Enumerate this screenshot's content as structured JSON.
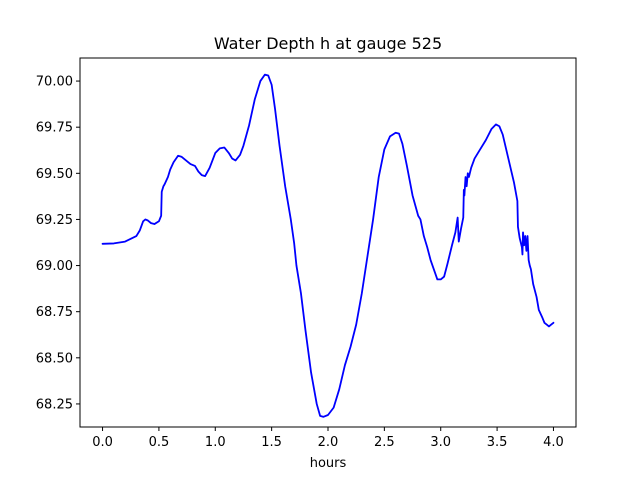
{
  "chart_data": {
    "type": "line",
    "title": "Water Depth h at gauge 525",
    "xlabel": "hours",
    "ylabel": "",
    "xlim": [
      -0.2,
      4.2
    ],
    "ylim": [
      68.125,
      70.125
    ],
    "grid": false,
    "x_ticks": [
      "0.0",
      "0.5",
      "1.0",
      "1.5",
      "2.0",
      "2.5",
      "3.0",
      "3.5",
      "4.0"
    ],
    "y_ticks": [
      "68.25",
      "68.50",
      "68.75",
      "69.00",
      "69.25",
      "69.50",
      "69.75",
      "70.00"
    ],
    "series": [
      {
        "color": "#0000ff",
        "points": [
          [
            0.0,
            69.118
          ],
          [
            0.1,
            69.12
          ],
          [
            0.2,
            69.13
          ],
          [
            0.3,
            69.16
          ],
          [
            0.33,
            69.19
          ],
          [
            0.36,
            69.24
          ],
          [
            0.38,
            69.25
          ],
          [
            0.4,
            69.245
          ],
          [
            0.43,
            69.23
          ],
          [
            0.46,
            69.225
          ],
          [
            0.5,
            69.24
          ],
          [
            0.52,
            69.27
          ],
          [
            0.525,
            69.4
          ],
          [
            0.54,
            69.43
          ],
          [
            0.55,
            69.44
          ],
          [
            0.58,
            69.48
          ],
          [
            0.6,
            69.52
          ],
          [
            0.63,
            69.56
          ],
          [
            0.67,
            69.595
          ],
          [
            0.7,
            69.59
          ],
          [
            0.75,
            69.565
          ],
          [
            0.78,
            69.55
          ],
          [
            0.82,
            69.54
          ],
          [
            0.85,
            69.51
          ],
          [
            0.88,
            69.49
          ],
          [
            0.91,
            69.485
          ],
          [
            0.95,
            69.53
          ],
          [
            1.0,
            69.61
          ],
          [
            1.04,
            69.635
          ],
          [
            1.08,
            69.64
          ],
          [
            1.12,
            69.61
          ],
          [
            1.15,
            69.58
          ],
          [
            1.18,
            69.57
          ],
          [
            1.22,
            69.6
          ],
          [
            1.25,
            69.65
          ],
          [
            1.3,
            69.76
          ],
          [
            1.35,
            69.9
          ],
          [
            1.4,
            70.0
          ],
          [
            1.44,
            70.035
          ],
          [
            1.47,
            70.03
          ],
          [
            1.5,
            69.98
          ],
          [
            1.53,
            69.85
          ],
          [
            1.57,
            69.65
          ],
          [
            1.62,
            69.43
          ],
          [
            1.67,
            69.25
          ],
          [
            1.7,
            69.12
          ],
          [
            1.72,
            69.0
          ],
          [
            1.76,
            68.85
          ],
          [
            1.8,
            68.65
          ],
          [
            1.85,
            68.42
          ],
          [
            1.9,
            68.25
          ],
          [
            1.93,
            68.185
          ],
          [
            1.96,
            68.18
          ],
          [
            2.0,
            68.19
          ],
          [
            2.05,
            68.23
          ],
          [
            2.1,
            68.33
          ],
          [
            2.15,
            68.46
          ],
          [
            2.2,
            68.56
          ],
          [
            2.25,
            68.68
          ],
          [
            2.3,
            68.85
          ],
          [
            2.35,
            69.05
          ],
          [
            2.4,
            69.25
          ],
          [
            2.45,
            69.48
          ],
          [
            2.5,
            69.63
          ],
          [
            2.55,
            69.7
          ],
          [
            2.6,
            69.72
          ],
          [
            2.63,
            69.715
          ],
          [
            2.66,
            69.66
          ],
          [
            2.7,
            69.54
          ],
          [
            2.75,
            69.38
          ],
          [
            2.8,
            69.27
          ],
          [
            2.82,
            69.25
          ],
          [
            2.85,
            69.16
          ],
          [
            2.88,
            69.1
          ],
          [
            2.91,
            69.03
          ],
          [
            2.95,
            68.96
          ],
          [
            2.97,
            68.925
          ],
          [
            3.0,
            68.925
          ],
          [
            3.03,
            68.94
          ],
          [
            3.06,
            69.01
          ],
          [
            3.1,
            69.11
          ],
          [
            3.13,
            69.18
          ],
          [
            3.15,
            69.26
          ],
          [
            3.16,
            69.13
          ],
          [
            3.18,
            69.2
          ],
          [
            3.2,
            69.26
          ],
          [
            3.205,
            69.41
          ],
          [
            3.21,
            69.38
          ],
          [
            3.22,
            69.48
          ],
          [
            3.23,
            69.43
          ],
          [
            3.24,
            69.5
          ],
          [
            3.25,
            69.48
          ],
          [
            3.27,
            69.53
          ],
          [
            3.3,
            69.58
          ],
          [
            3.35,
            69.63
          ],
          [
            3.4,
            69.68
          ],
          [
            3.45,
            69.74
          ],
          [
            3.49,
            69.765
          ],
          [
            3.52,
            69.755
          ],
          [
            3.55,
            69.71
          ],
          [
            3.6,
            69.58
          ],
          [
            3.65,
            69.45
          ],
          [
            3.68,
            69.35
          ],
          [
            3.685,
            69.21
          ],
          [
            3.7,
            69.15
          ],
          [
            3.72,
            69.1
          ],
          [
            3.725,
            69.06
          ],
          [
            3.73,
            69.18
          ],
          [
            3.74,
            69.11
          ],
          [
            3.75,
            69.16
          ],
          [
            3.76,
            69.08
          ],
          [
            3.77,
            69.16
          ],
          [
            3.78,
            69.03
          ],
          [
            3.79,
            69.0
          ],
          [
            3.8,
            68.98
          ],
          [
            3.82,
            68.9
          ],
          [
            3.85,
            68.83
          ],
          [
            3.87,
            68.76
          ],
          [
            3.9,
            68.72
          ],
          [
            3.92,
            68.69
          ],
          [
            3.94,
            68.68
          ],
          [
            3.96,
            68.67
          ],
          [
            3.98,
            68.68
          ],
          [
            4.0,
            68.69
          ]
        ]
      }
    ]
  }
}
